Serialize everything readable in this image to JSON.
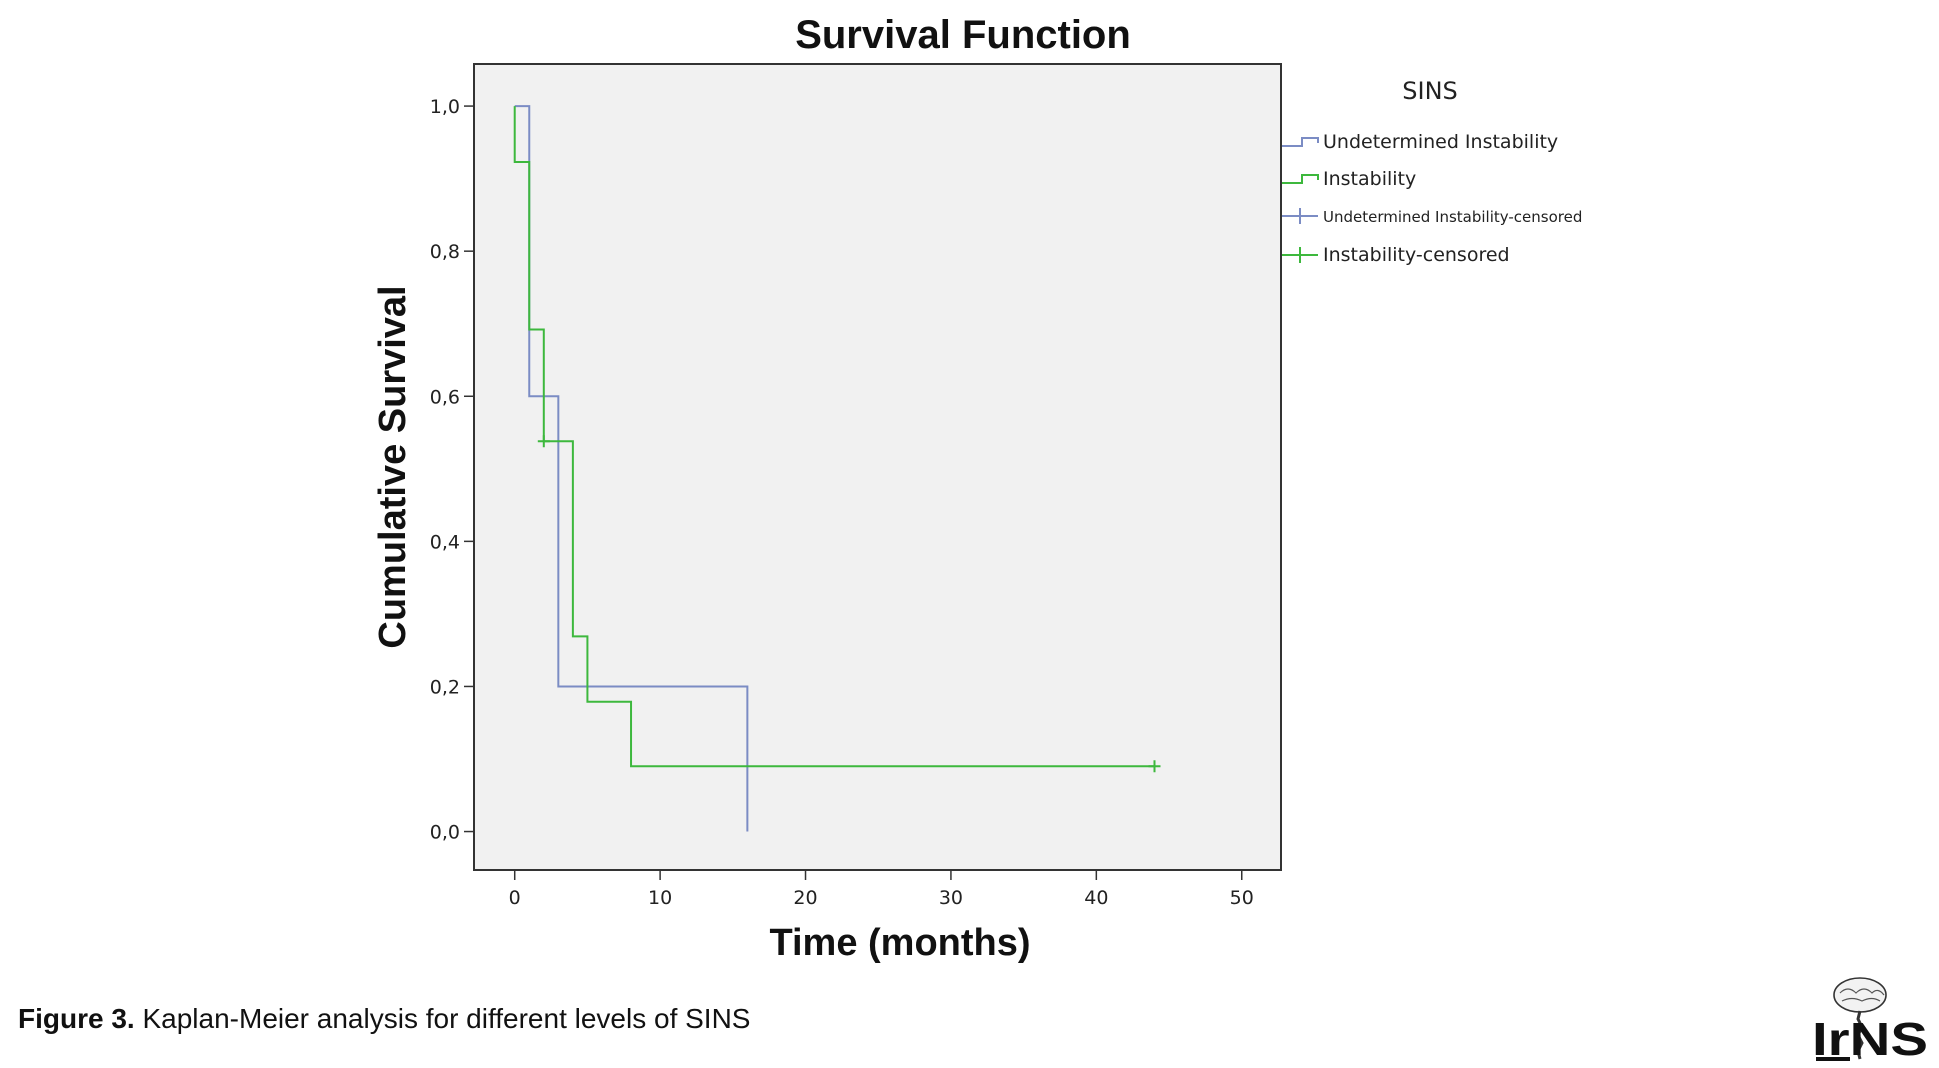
{
  "caption": {
    "label": "Figure 3.",
    "text": "Kaplan-Meier analysis for different levels of SINS"
  },
  "logo": {
    "text": "IrNS",
    "icon": "brain-spine-logo-icon"
  },
  "chart_data": {
    "type": "line",
    "subtype": "kaplan-meier-step",
    "title": "Survival Function",
    "xlabel": "Time (months)",
    "ylabel": "Cumulative Survival",
    "xlim": [
      -2.8,
      52.7
    ],
    "ylim": [
      -0.053,
      1.058
    ],
    "xticks": [
      0,
      10,
      20,
      30,
      40,
      50
    ],
    "xtick_labels": [
      "0",
      "10",
      "20",
      "30",
      "40",
      "50"
    ],
    "yticks": [
      0.0,
      0.2,
      0.4,
      0.6,
      0.8,
      1.0
    ],
    "ytick_labels": [
      "0,0",
      "0,2",
      "0,4",
      "0,6",
      "0,8",
      "1,0"
    ],
    "grid": false,
    "plot_background": "#f1f1f1",
    "legend": {
      "title": "SINS",
      "placement": "right-top",
      "entries": [
        {
          "label": "Undetermined Instability",
          "series": "undetermined",
          "kind": "step"
        },
        {
          "label": "Instability",
          "series": "instability",
          "kind": "step"
        },
        {
          "label": "Undetermined Instability-censored",
          "series": "undetermined",
          "kind": "censor"
        },
        {
          "label": "Instability-censored",
          "series": "instability",
          "kind": "censor"
        }
      ]
    },
    "series": [
      {
        "name": "Undetermined Instability",
        "key": "undetermined",
        "color": "#7b8cc4",
        "x": [
          0,
          1,
          3,
          16,
          16
        ],
        "y": [
          1.0,
          0.6,
          0.2,
          0.0,
          0.0
        ],
        "censored": []
      },
      {
        "name": "Instability",
        "key": "instability",
        "color": "#3db83d",
        "x": [
          0,
          1,
          2,
          4,
          5,
          8,
          44
        ],
        "y": [
          0.923,
          0.692,
          0.538,
          0.269,
          0.179,
          0.09,
          0.09
        ],
        "censored": [
          {
            "x": 2,
            "y": 0.538
          },
          {
            "x": 44,
            "y": 0.09
          }
        ]
      }
    ]
  }
}
